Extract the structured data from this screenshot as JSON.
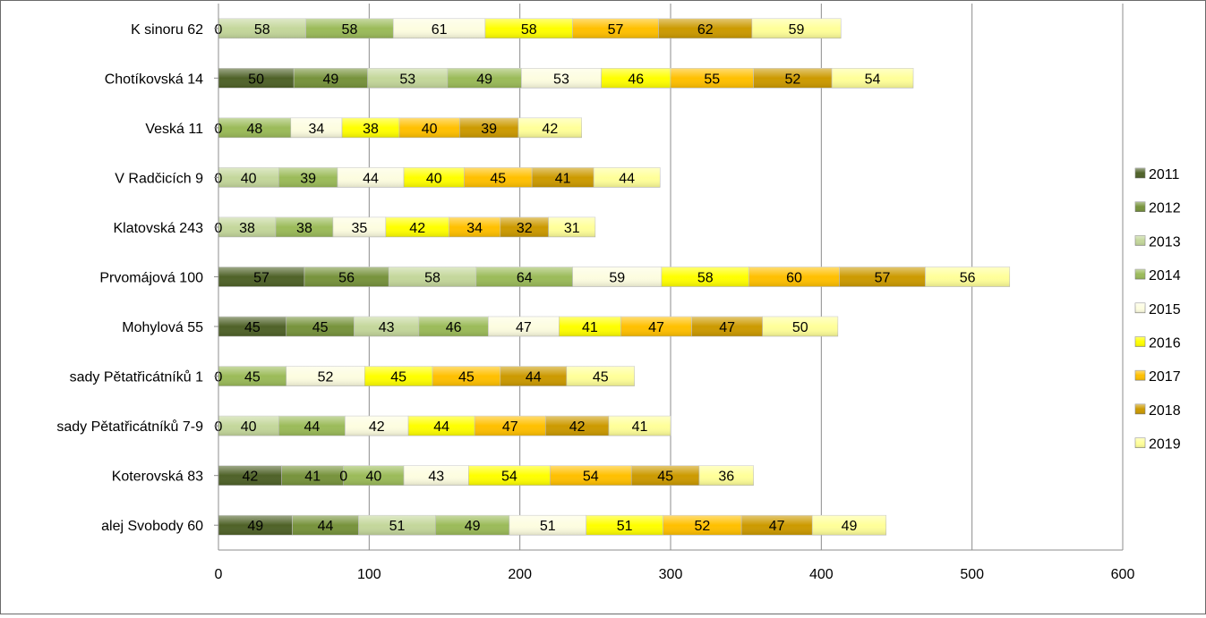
{
  "chart_data": {
    "type": "bar",
    "orientation": "horizontal",
    "stacked": true,
    "categories": [
      "K sinoru 62",
      "Chotíkovská 14",
      "Veská 11",
      "V Radčicích 9",
      "Klatovská 243",
      "Prvomájová 100",
      "Mohylová 55",
      "sady Pětatřicátníků 1",
      "sady Pětatřicátníků 7-9",
      "Koterovská 83",
      "alej Svobody 60"
    ],
    "series": [
      {
        "name": "2011",
        "color": "#4f6228",
        "values": [
          0,
          50,
          0,
          0,
          0,
          57,
          45,
          0,
          0,
          42,
          49
        ]
      },
      {
        "name": "2012",
        "color": "#77933c",
        "values": [
          null,
          49,
          null,
          null,
          null,
          56,
          45,
          null,
          null,
          41,
          44
        ]
      },
      {
        "name": "2013",
        "color": "#c4d79b",
        "values": [
          58,
          53,
          null,
          40,
          38,
          58,
          43,
          null,
          40,
          0,
          51
        ]
      },
      {
        "name": "2014",
        "color": "#9bbb59",
        "values": [
          58,
          49,
          48,
          39,
          38,
          64,
          46,
          45,
          44,
          40,
          49
        ]
      },
      {
        "name": "2015",
        "color": "#fdfde0",
        "values": [
          61,
          53,
          34,
          44,
          35,
          59,
          47,
          52,
          42,
          43,
          51
        ]
      },
      {
        "name": "2016",
        "color": "#ffff00",
        "values": [
          58,
          46,
          38,
          40,
          42,
          58,
          41,
          45,
          44,
          54,
          51
        ]
      },
      {
        "name": "2017",
        "color": "#ffc000",
        "values": [
          57,
          55,
          40,
          45,
          34,
          60,
          47,
          45,
          47,
          54,
          52
        ]
      },
      {
        "name": "2018",
        "color": "#cc9a00",
        "values": [
          62,
          52,
          39,
          41,
          32,
          57,
          47,
          44,
          42,
          45,
          47
        ]
      },
      {
        "name": "2019",
        "color": "#ffff99",
        "values": [
          59,
          54,
          42,
          44,
          31,
          56,
          50,
          45,
          41,
          36,
          49
        ]
      }
    ],
    "xlim": [
      0,
      600
    ],
    "xticks": [
      0,
      100,
      200,
      300,
      400,
      500,
      600
    ],
    "grid": "vertical",
    "legend": "right",
    "data_labels": true
  }
}
